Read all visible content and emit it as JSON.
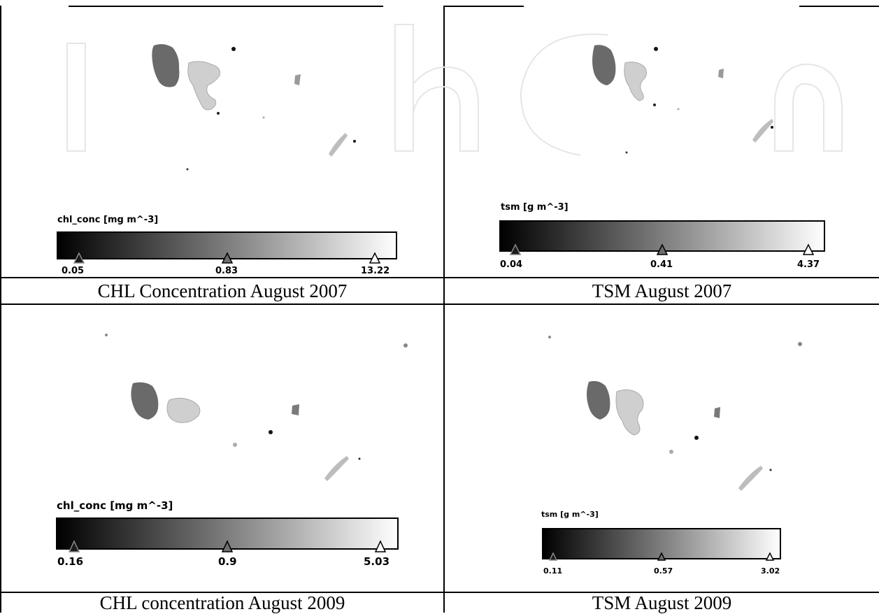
{
  "panels": [
    {
      "caption": "CHL Concentration August  2007",
      "colorbar": {
        "title": "chl_conc [mg m^-3]",
        "ticks": [
          "0.05",
          "0.83",
          "13.22"
        ]
      }
    },
    {
      "caption": "TSM August 2007",
      "colorbar": {
        "title": "tsm [g m^-3]",
        "ticks": [
          "0.04",
          "0.41",
          "4.37"
        ]
      }
    },
    {
      "caption": "CHL concentration August 2009",
      "colorbar": {
        "title": "chl_conc [mg m^-3]",
        "ticks": [
          "0.16",
          "0.9",
          "5.03"
        ]
      }
    },
    {
      "caption": "TSM August 2009",
      "colorbar": {
        "title": "tsm [g m^-3]",
        "ticks": [
          "0.11",
          "0.57",
          "3.02"
        ]
      }
    }
  ],
  "colors": {
    "ramp_start": "#000000",
    "ramp_end": "#ffffff",
    "lake_dark": "#6a6a6a",
    "lake_light": "#cfcfcf",
    "marker_dark": "#1a1a1a",
    "marker_mid": "#6e6e6e",
    "marker_light": "#ffffff"
  }
}
